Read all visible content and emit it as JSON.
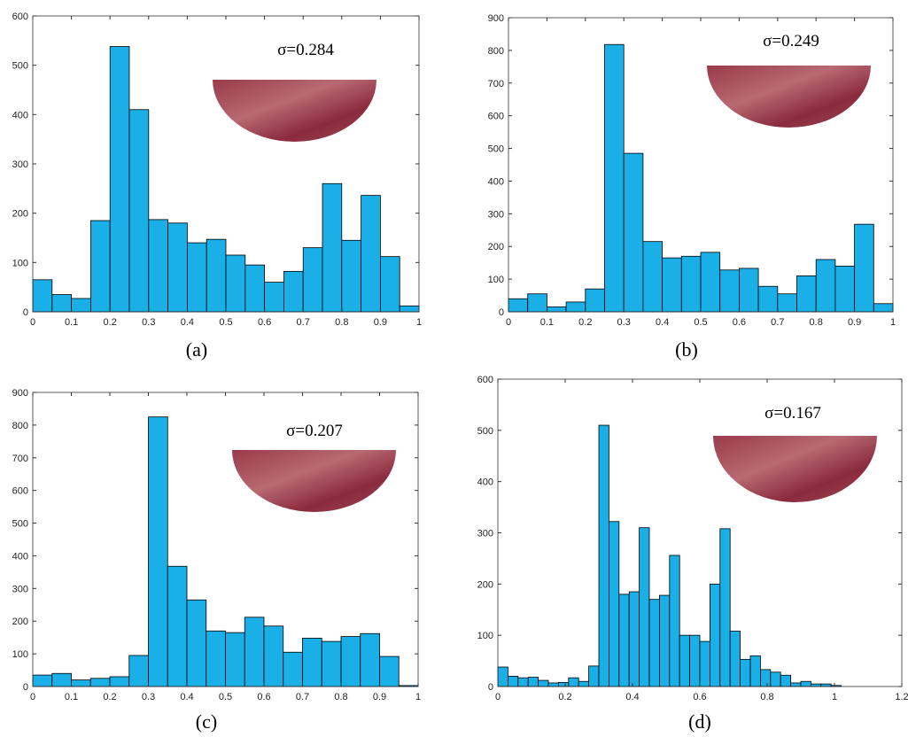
{
  "chart_data": [
    {
      "type": "histogram",
      "caption": "(a)",
      "annotation": "σ=0.284",
      "color": "#1aafe6",
      "bins": [
        0,
        0.05,
        0.1,
        0.15,
        0.2,
        0.25,
        0.3,
        0.35,
        0.4,
        0.45,
        0.5,
        0.55,
        0.6,
        0.65,
        0.7,
        0.75,
        0.8,
        0.85,
        0.9,
        0.95,
        1
      ],
      "values": [
        65,
        35,
        27,
        185,
        538,
        410,
        187,
        180,
        140,
        147,
        115,
        95,
        60,
        82,
        130,
        260,
        145,
        236,
        112,
        12
      ],
      "xlim": [
        0,
        1
      ],
      "xticks": [
        0,
        0.1,
        0.2,
        0.3,
        0.4,
        0.5,
        0.6,
        0.7,
        0.8,
        0.9,
        1
      ],
      "ylim": [
        0,
        600
      ],
      "yticks": [
        0,
        100,
        200,
        300,
        400,
        500,
        600
      ]
    },
    {
      "type": "histogram",
      "caption": "(b)",
      "annotation": "σ=0.249",
      "color": "#1aafe6",
      "bins": [
        0,
        0.05,
        0.1,
        0.15,
        0.2,
        0.25,
        0.3,
        0.35,
        0.4,
        0.45,
        0.5,
        0.55,
        0.6,
        0.65,
        0.7,
        0.75,
        0.8,
        0.85,
        0.9,
        0.95,
        1
      ],
      "values": [
        40,
        55,
        15,
        30,
        70,
        818,
        485,
        215,
        165,
        170,
        182,
        128,
        133,
        78,
        55,
        110,
        160,
        140,
        268,
        25
      ],
      "xlim": [
        0,
        1
      ],
      "xticks": [
        0,
        0.1,
        0.2,
        0.3,
        0.4,
        0.5,
        0.6,
        0.7,
        0.8,
        0.9,
        1
      ],
      "ylim": [
        0,
        900
      ],
      "yticks": [
        0,
        100,
        200,
        300,
        400,
        500,
        600,
        700,
        800,
        900
      ]
    },
    {
      "type": "histogram",
      "caption": "(c)",
      "annotation": "σ=0.207",
      "color": "#1aafe6",
      "bins": [
        0,
        0.05,
        0.1,
        0.15,
        0.2,
        0.25,
        0.3,
        0.35,
        0.4,
        0.45,
        0.5,
        0.55,
        0.6,
        0.65,
        0.7,
        0.75,
        0.8,
        0.85,
        0.9,
        0.95,
        1
      ],
      "values": [
        35,
        40,
        20,
        25,
        30,
        95,
        825,
        368,
        265,
        170,
        165,
        212,
        185,
        105,
        148,
        138,
        153,
        162,
        92,
        3
      ],
      "xlim": [
        0,
        1
      ],
      "xticks": [
        0,
        0.1,
        0.2,
        0.3,
        0.4,
        0.5,
        0.6,
        0.7,
        0.8,
        0.9,
        1
      ],
      "ylim": [
        0,
        900
      ],
      "yticks": [
        0,
        100,
        200,
        300,
        400,
        500,
        600,
        700,
        800,
        900
      ]
    },
    {
      "type": "histogram",
      "caption": "(d)",
      "annotation": "σ=0.167",
      "color": "#1aafe6",
      "bins": [
        0,
        0.03,
        0.06,
        0.09,
        0.12,
        0.15,
        0.18,
        0.21,
        0.24,
        0.27,
        0.3,
        0.33,
        0.36,
        0.39,
        0.42,
        0.45,
        0.48,
        0.51,
        0.54,
        0.57,
        0.6,
        0.63,
        0.66,
        0.69,
        0.72,
        0.75,
        0.78,
        0.81,
        0.84,
        0.87,
        0.9,
        0.93,
        0.96,
        0.99,
        1.02
      ],
      "values": [
        38,
        20,
        17,
        18,
        12,
        7,
        8,
        17,
        10,
        40,
        510,
        322,
        180,
        185,
        310,
        170,
        178,
        256,
        100,
        100,
        88,
        200,
        308,
        108,
        53,
        60,
        33,
        28,
        22,
        7,
        10,
        5,
        5,
        2
      ],
      "xlim": [
        0,
        1.2
      ],
      "xticks": [
        0,
        0.2,
        0.4,
        0.6,
        0.8,
        1,
        1.2
      ],
      "ylim": [
        0,
        600
      ],
      "yticks": [
        0,
        100,
        200,
        300,
        400,
        500,
        600
      ]
    }
  ]
}
